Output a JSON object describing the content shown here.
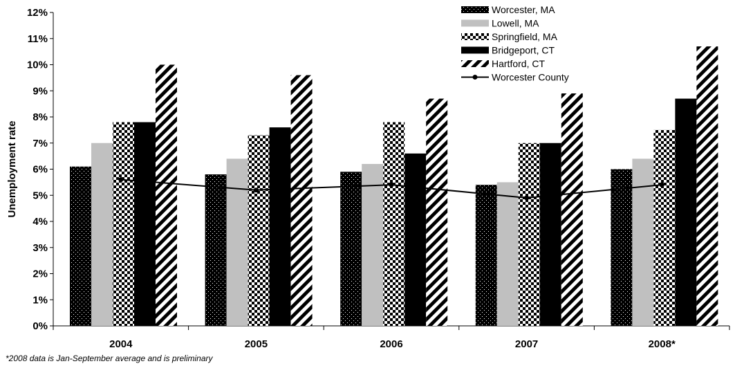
{
  "chart_data": {
    "type": "bar",
    "ylabel": "Unemployment rate",
    "xlabel": "",
    "title": "",
    "ylim": [
      0,
      12
    ],
    "ytick_labels": [
      "0%",
      "1%",
      "2%",
      "3%",
      "4%",
      "5%",
      "6%",
      "7%",
      "8%",
      "9%",
      "10%",
      "11%",
      "12%"
    ],
    "categories": [
      "2004",
      "2005",
      "2006",
      "2007",
      "2008*"
    ],
    "series": [
      {
        "name": "Worcester, MA",
        "type": "bar",
        "pattern": "dots-on-black",
        "values": [
          6.1,
          5.8,
          5.9,
          5.4,
          6.0
        ]
      },
      {
        "name": "Lowell, MA",
        "type": "bar",
        "pattern": "solid-gray",
        "color": "#c0c0c0",
        "values": [
          7.0,
          6.4,
          6.2,
          5.5,
          6.4
        ]
      },
      {
        "name": "Springfield, MA",
        "type": "bar",
        "pattern": "checkerboard",
        "values": [
          7.8,
          7.3,
          7.8,
          7.0,
          7.5
        ]
      },
      {
        "name": "Bridgeport, CT",
        "type": "bar",
        "pattern": "solid-black",
        "color": "#000000",
        "values": [
          7.8,
          7.6,
          6.6,
          7.0,
          8.7
        ]
      },
      {
        "name": "Hartford, CT",
        "type": "bar",
        "pattern": "diagonal-stripes",
        "values": [
          10.0,
          9.6,
          8.7,
          8.9,
          10.7
        ]
      },
      {
        "name": "Worcester County",
        "type": "line",
        "color": "#000000",
        "values": [
          5.6,
          5.2,
          5.4,
          4.9,
          5.4
        ]
      }
    ],
    "legend_position": "top-right",
    "grid": false
  },
  "footnote": "*2008 data is Jan-September average and is preliminary"
}
